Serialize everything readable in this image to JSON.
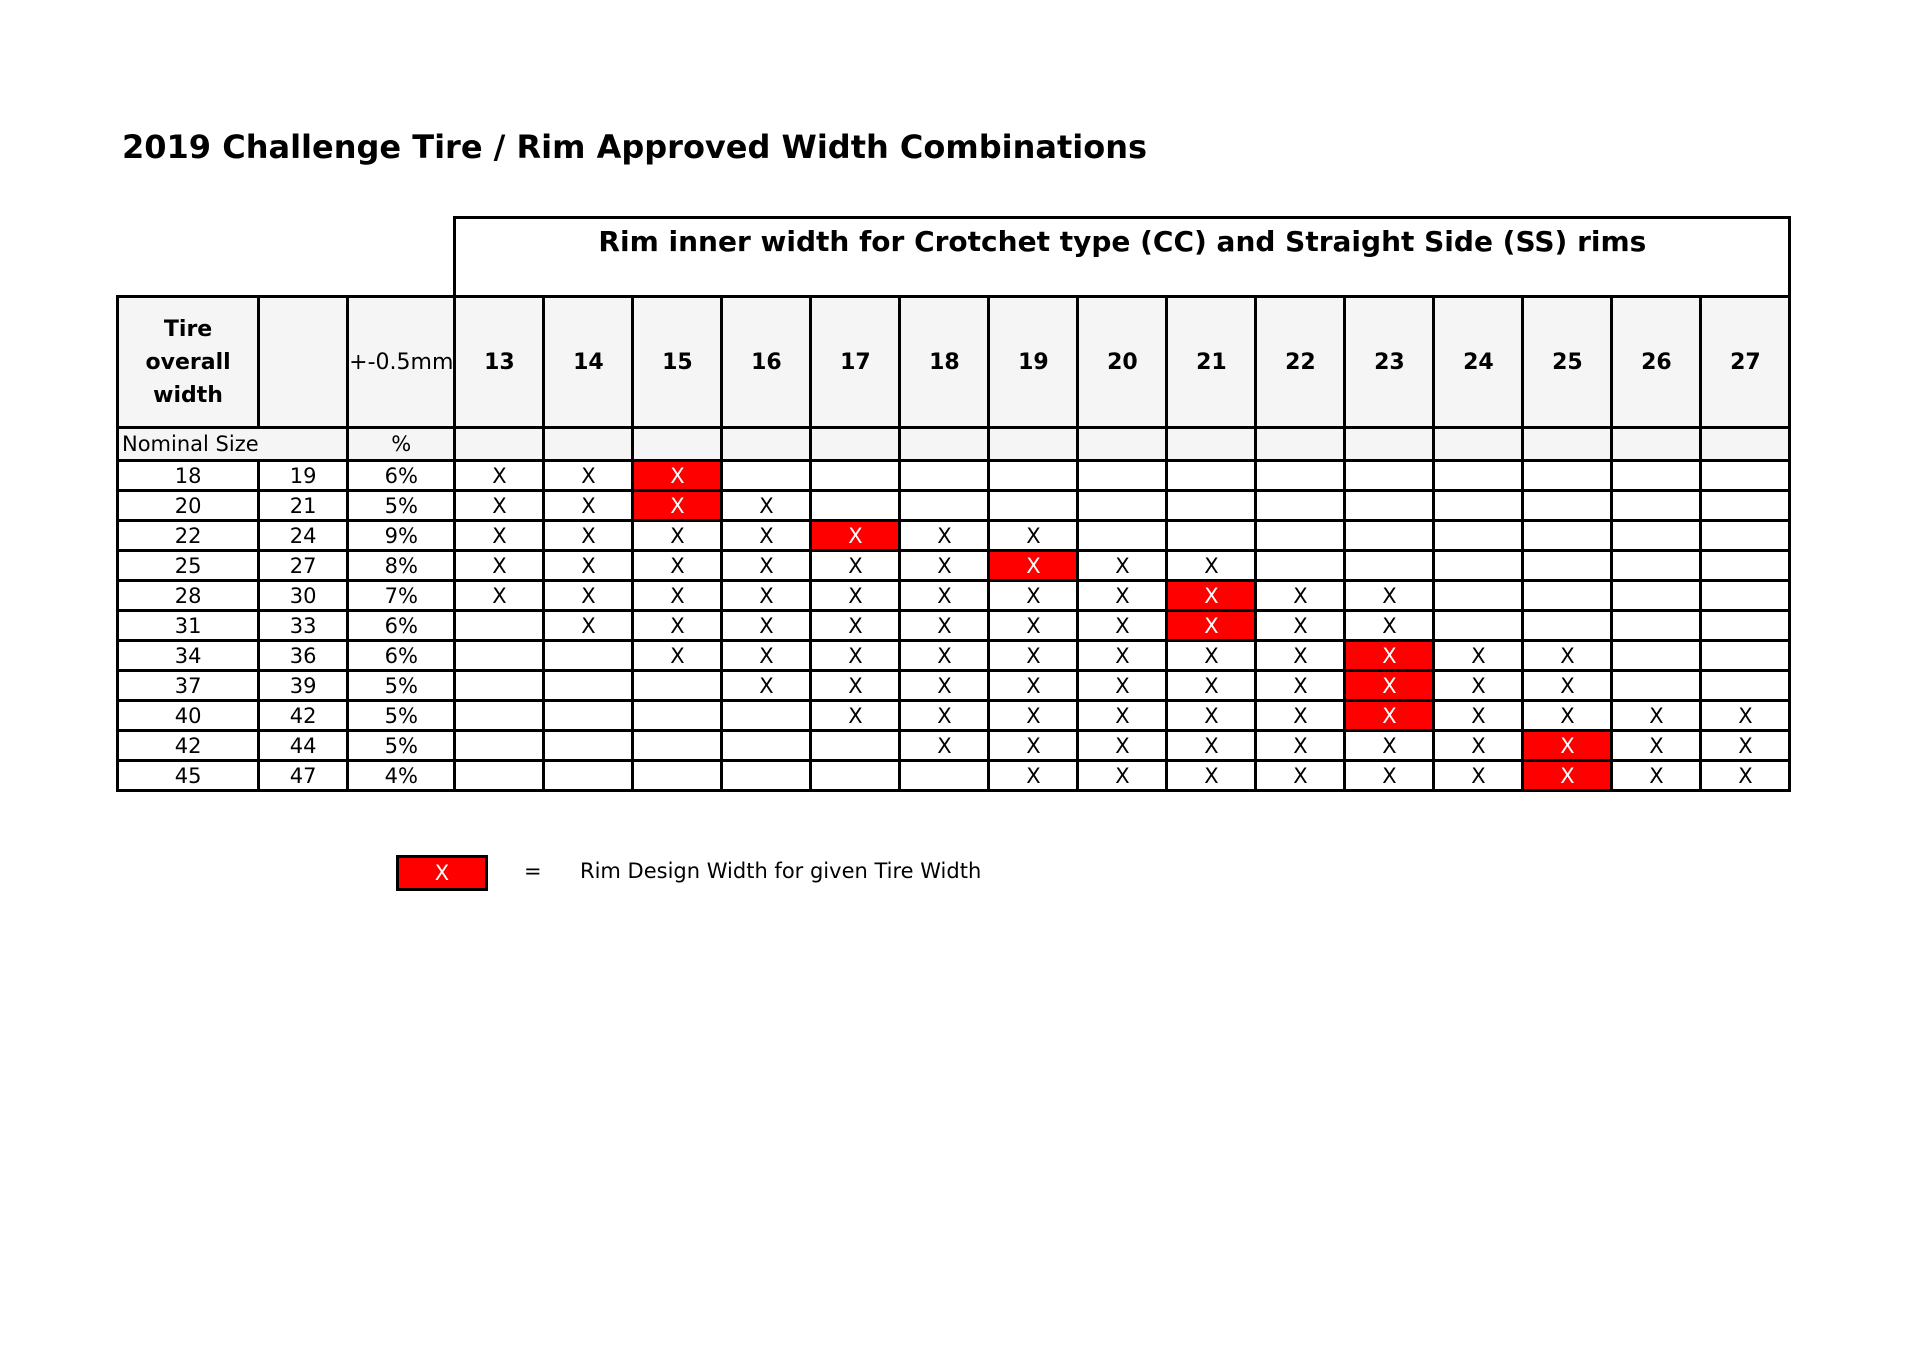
{
  "title": "2019 Challenge Tire / Rim Approved Width Combinations",
  "rim_header": "Rim inner width for Crotchet type (CC) and Straight Side (SS) rims",
  "tire_header": "Tire overall width",
  "tolerance_header": "+-0.5mm",
  "nominal_label": "Nominal Size",
  "percent_label": "%",
  "rim_widths": [
    "13",
    "14",
    "15",
    "16",
    "17",
    "18",
    "19",
    "20",
    "21",
    "22",
    "23",
    "24",
    "25",
    "26",
    "27"
  ],
  "rows": [
    {
      "nominal": "18",
      "overall": "19",
      "pct": "6%",
      "marks": [
        "X",
        "X",
        "X",
        "",
        "",
        "",
        "",
        "",
        "",
        "",
        "",
        "",
        "",
        "",
        ""
      ],
      "design": 2
    },
    {
      "nominal": "20",
      "overall": "21",
      "pct": "5%",
      "marks": [
        "X",
        "X",
        "X",
        "X",
        "",
        "",
        "",
        "",
        "",
        "",
        "",
        "",
        "",
        "",
        ""
      ],
      "design": 2
    },
    {
      "nominal": "22",
      "overall": "24",
      "pct": "9%",
      "marks": [
        "X",
        "X",
        "X",
        "X",
        "X",
        "X",
        "X",
        "",
        "",
        "",
        "",
        "",
        "",
        "",
        ""
      ],
      "design": 4
    },
    {
      "nominal": "25",
      "overall": "27",
      "pct": "8%",
      "marks": [
        "X",
        "X",
        "X",
        "X",
        "X",
        "X",
        "X",
        "X",
        "X",
        "",
        "",
        "",
        "",
        "",
        ""
      ],
      "design": 6
    },
    {
      "nominal": "28",
      "overall": "30",
      "pct": "7%",
      "marks": [
        "X",
        "X",
        "X",
        "X",
        "X",
        "X",
        "X",
        "X",
        "X",
        "X",
        "X",
        "",
        "",
        "",
        ""
      ],
      "design": 8
    },
    {
      "nominal": "31",
      "overall": "33",
      "pct": "6%",
      "marks": [
        "",
        "X",
        "X",
        "X",
        "X",
        "X",
        "X",
        "X",
        "X",
        "X",
        "X",
        "",
        "",
        "",
        ""
      ],
      "design": 8
    },
    {
      "nominal": "34",
      "overall": "36",
      "pct": "6%",
      "marks": [
        "",
        "",
        "X",
        "X",
        "X",
        "X",
        "X",
        "X",
        "X",
        "X",
        "X",
        "X",
        "X",
        "",
        ""
      ],
      "design": 10
    },
    {
      "nominal": "37",
      "overall": "39",
      "pct": "5%",
      "marks": [
        "",
        "",
        "",
        "X",
        "X",
        "X",
        "X",
        "X",
        "X",
        "X",
        "X",
        "X",
        "X",
        "",
        ""
      ],
      "design": 10
    },
    {
      "nominal": "40",
      "overall": "42",
      "pct": "5%",
      "marks": [
        "",
        "",
        "",
        "",
        "X",
        "X",
        "X",
        "X",
        "X",
        "X",
        "X",
        "X",
        "X",
        "X",
        "X"
      ],
      "design": 10
    },
    {
      "nominal": "42",
      "overall": "44",
      "pct": "5%",
      "marks": [
        "",
        "",
        "",
        "",
        "",
        "X",
        "X",
        "X",
        "X",
        "X",
        "X",
        "X",
        "X",
        "X",
        "X"
      ],
      "design": 12
    },
    {
      "nominal": "45",
      "overall": "47",
      "pct": "4%",
      "marks": [
        "",
        "",
        "",
        "",
        "",
        "",
        "X",
        "X",
        "X",
        "X",
        "X",
        "X",
        "X",
        "X",
        "X"
      ],
      "design": 12
    }
  ],
  "legend": {
    "swatch": "X",
    "equals": "=",
    "text": "Rim Design Width for given Tire Width"
  },
  "colors": {
    "design_highlight": "#ff0000",
    "header_fill": "#f5f5f5"
  }
}
